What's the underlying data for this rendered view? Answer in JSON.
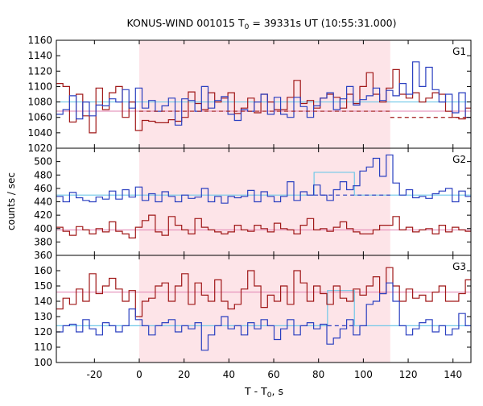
{
  "title_prefix": "KONUS-WIND 001015 T",
  "title_subscript": "0",
  "title_suffix": " = 39331s UT (10:55:31.000)",
  "ylabel": "counts / sec",
  "xlabel_prefix": "T - T",
  "xlabel_subscript": "0",
  "xlabel_suffix": ", s",
  "colors": {
    "data_red": "#a01818",
    "data_blue": "#2a3fc0",
    "bg_line_red": "#e080b0",
    "bg_line_blue": "#70c8e8",
    "shaded_region": "#fde4e8"
  },
  "chart_data": {
    "type": "line",
    "xlim": [
      -37,
      148
    ],
    "xticks": [
      -20,
      0,
      20,
      40,
      60,
      80,
      100,
      120,
      140
    ],
    "shaded_interval": [
      0,
      112
    ],
    "panels": [
      {
        "label": "G1",
        "ylim": [
          1020,
          1160
        ],
        "yticks": [
          1020,
          1040,
          1060,
          1080,
          1100,
          1120,
          1140,
          1160
        ],
        "background_red": 1068,
        "background_blue": 1080,
        "blue_dashed_interval": [
          112,
          148
        ],
        "blue_dashed_level": 1060,
        "x_start": -37,
        "bin_width": 2.944,
        "series": [
          {
            "color": "red",
            "values": [
              1104,
              1100,
              1054,
              1090,
              1062,
              1040,
              1098,
              1070,
              1092,
              1100,
              1060,
              1080,
              1043,
              1056,
              1055,
              1053,
              1053,
              1057,
              1055,
              1060,
              1093,
              1078,
              1070,
              1092,
              1080,
              1085,
              1092,
              1065,
              1072,
              1085,
              1066,
              1090,
              1080,
              1070,
              1070,
              1086,
              1108,
              1078,
              1082,
              1072,
              1085,
              1090,
              1086,
              1072,
              1090,
              1078,
              1100,
              1118,
              1090,
              1080,
              1098,
              1122,
              1090,
              1085,
              1092,
              1080,
              1085,
              1092,
              1090,
              1068,
              1060,
              1058,
              1072,
              1060,
              1060,
              1070,
              1065,
              1060,
              1058,
              1068,
              1058,
              1062,
              1050
            ]
          },
          {
            "color": "blue",
            "values": [
              1064,
              1070,
              1088,
              1058,
              1080,
              1062,
              1076,
              1075,
              1084,
              1080,
              1096,
              1072,
              1098,
              1072,
              1082,
              1068,
              1075,
              1085,
              1050,
              1084,
              1082,
              1068,
              1100,
              1072,
              1082,
              1087,
              1064,
              1056,
              1070,
              1068,
              1080,
              1090,
              1064,
              1086,
              1064,
              1060,
              1086,
              1074,
              1060,
              1075,
              1085,
              1092,
              1070,
              1084,
              1100,
              1076,
              1083,
              1088,
              1098,
              1082,
              1095,
              1088,
              1104,
              1090,
              1132,
              1100,
              1125,
              1096,
              1080,
              1090,
              1066,
              1092,
              1060,
              1058,
              1070,
              1062,
              1064,
              1072,
              1083,
              1070,
              1096,
              1074,
              1092
            ]
          }
        ]
      },
      {
        "label": "G2",
        "ylim": [
          360,
          520
        ],
        "yticks": [
          360,
          380,
          400,
          420,
          440,
          460,
          480,
          500,
          520
        ],
        "background_red": 398,
        "background_blue": 450,
        "blue_dashed_interval": [
          78,
          112
        ],
        "blue_dashed_level": 450,
        "light_blue_steps": [
          {
            "x": [
              -37,
              78
            ],
            "y": 450
          },
          {
            "x": [
              78,
              96
            ],
            "y": 484
          },
          {
            "x": [
              96,
              148
            ],
            "y": 450
          }
        ],
        "x_start": -37,
        "bin_width": 2.944,
        "series": [
          {
            "color": "red",
            "values": [
              402,
              396,
              390,
              403,
              398,
              392,
              400,
              395,
              410,
              396,
              392,
              386,
              402,
              412,
              420,
              395,
              390,
              418,
              405,
              398,
              392,
              415,
              402,
              398,
              395,
              392,
              395,
              405,
              398,
              396,
              405,
              400,
              395,
              408,
              400,
              398,
              392,
              405,
              415,
              398,
              400,
              396,
              402,
              410,
              400,
              395,
              392,
              392,
              398,
              405,
              405,
              418,
              398,
              402,
              395,
              398,
              400,
              392,
              405,
              395,
              402,
              398,
              396,
              412,
              392,
              402,
              410,
              395,
              402,
              392,
              398,
              400,
              402
            ]
          },
          {
            "color": "blue",
            "values": [
              448,
              440,
              454,
              446,
              442,
              440,
              447,
              444,
              456,
              444,
              458,
              447,
              462,
              442,
              452,
              440,
              455,
              448,
              440,
              450,
              445,
              447,
              460,
              440,
              448,
              438,
              448,
              446,
              448,
              457,
              440,
              455,
              448,
              440,
              448,
              470,
              442,
              455,
              450,
              465,
              450,
              442,
              458,
              470,
              458,
              464,
              486,
              492,
              505,
              478,
              510,
              468,
              450,
              458,
              446,
              448,
              445,
              452,
              456,
              460,
              440,
              456,
              448,
              452,
              450,
              458,
              444,
              450,
              445,
              438,
              470,
              452,
              480
            ]
          }
        ]
      },
      {
        "label": "G3",
        "ylim": [
          100,
          170
        ],
        "yticks": [
          100,
          110,
          120,
          130,
          140,
          150,
          160
        ],
        "background_red": 146,
        "background_blue": 124,
        "blue_dashed_interval": [
          84,
          96
        ],
        "blue_dashed_level": 124,
        "light_blue_steps": [
          {
            "x": [
              -37,
              84
            ],
            "y": 124
          },
          {
            "x": [
              84,
              96
            ],
            "y": 147
          },
          {
            "x": [
              96,
              148
            ],
            "y": 124
          }
        ],
        "x_start": -37,
        "bin_width": 2.944,
        "series": [
          {
            "color": "red",
            "values": [
              135,
              142,
              138,
              148,
              140,
              158,
              145,
              150,
              155,
              148,
              140,
              147,
              130,
              140,
              142,
              150,
              152,
              140,
              150,
              158,
              138,
              152,
              144,
              140,
              154,
              140,
              135,
              138,
              148,
              160,
              150,
              136,
              144,
              140,
              150,
              138,
              160,
              152,
              140,
              150,
              145,
              138,
              150,
              142,
              140,
              148,
              144,
              150,
              156,
              145,
              162,
              150,
              140,
              148,
              142,
              144,
              140,
              146,
              150,
              140,
              140,
              145,
              154,
              150,
              152,
              140,
              146,
              138,
              150,
              145,
              135,
              155,
              150
            ]
          },
          {
            "color": "blue",
            "values": [
              120,
              124,
              125,
              120,
              128,
              122,
              118,
              126,
              124,
              120,
              124,
              135,
              128,
              124,
              118,
              124,
              126,
              128,
              120,
              124,
              122,
              126,
              108,
              118,
              124,
              130,
              122,
              124,
              118,
              126,
              122,
              128,
              124,
              115,
              122,
              128,
              118,
              124,
              126,
              122,
              125,
              112,
              116,
              122,
              128,
              118,
              124,
              138,
              140,
              145,
              152,
              140,
              124,
              118,
              122,
              126,
              128,
              120,
              124,
              118,
              122,
              132,
              124,
              120,
              110,
              120,
              128,
              118,
              136,
              124,
              120,
              118,
              112
            ]
          }
        ]
      }
    ]
  }
}
